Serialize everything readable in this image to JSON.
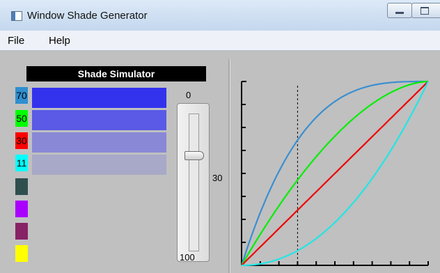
{
  "window": {
    "title": "Window Shade Generator",
    "icon": "app-window-icon"
  },
  "menu": [
    "File",
    "Help"
  ],
  "simulator": {
    "title": "Shade Simulator",
    "shades": [
      {
        "label": "70",
        "label_bg": "#2f8fcf",
        "bar_color": "#3333ee"
      },
      {
        "label": "50",
        "label_bg": "#00ff00",
        "bar_color": "#5a5ae6"
      },
      {
        "label": "30",
        "label_bg": "#ff0000",
        "bar_color": "#8888d6"
      },
      {
        "label": "11",
        "label_bg": "#00ffff",
        "bar_color": "#a8a8c8"
      }
    ],
    "extra_swatches": [
      "#2f4f4f",
      "#aa00ff",
      "#882266",
      "#ffff00"
    ]
  },
  "slider": {
    "top_label": "0",
    "bottom_label": "100",
    "value_label": "30",
    "value": 30
  },
  "graph": {
    "dashed_line_x": 0.3,
    "curves": [
      {
        "color": "#3b8fd1",
        "shape": "convex-strong"
      },
      {
        "color": "#00ee00",
        "shape": "convex-mild"
      },
      {
        "color": "#ee0000",
        "shape": "linear"
      },
      {
        "color": "#22e5e5",
        "shape": "concave"
      }
    ]
  }
}
